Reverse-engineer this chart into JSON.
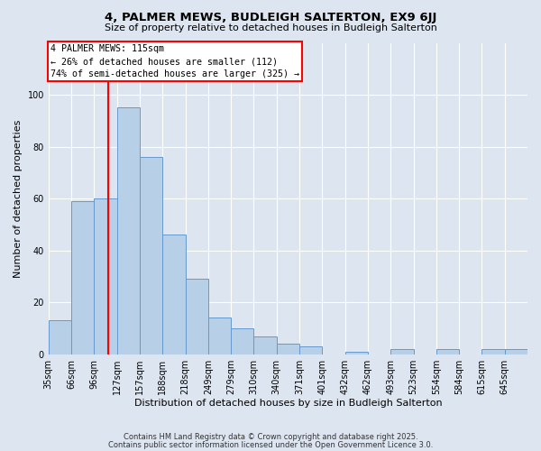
{
  "title": "4, PALMER MEWS, BUDLEIGH SALTERTON, EX9 6JJ",
  "subtitle": "Size of property relative to detached houses in Budleigh Salterton",
  "xlabel": "Distribution of detached houses by size in Budleigh Salterton",
  "ylabel": "Number of detached properties",
  "bin_labels": [
    "35sqm",
    "66sqm",
    "96sqm",
    "127sqm",
    "157sqm",
    "188sqm",
    "218sqm",
    "249sqm",
    "279sqm",
    "310sqm",
    "340sqm",
    "371sqm",
    "401sqm",
    "432sqm",
    "462sqm",
    "493sqm",
    "523sqm",
    "554sqm",
    "584sqm",
    "615sqm",
    "645sqm"
  ],
  "bar_values": [
    13,
    59,
    60,
    95,
    76,
    46,
    29,
    14,
    10,
    7,
    4,
    3,
    0,
    1,
    0,
    2,
    0,
    2,
    0,
    2,
    2
  ],
  "bar_color": "#b8cfe8",
  "bar_edge_color": "#6699cc",
  "vline_x": 2,
  "vline_color": "red",
  "annotation_text": "4 PALMER MEWS: 115sqm\n← 26% of detached houses are smaller (112)\n74% of semi-detached houses are larger (325) →",
  "annotation_box_color": "white",
  "annotation_box_edge_color": "red",
  "footer_line1": "Contains HM Land Registry data © Crown copyright and database right 2025.",
  "footer_line2": "Contains public sector information licensed under the Open Government Licence 3.0.",
  "ylim": [
    0,
    120
  ],
  "background_color": "#dde5f0",
  "plot_bg_color": "#dde5f0"
}
